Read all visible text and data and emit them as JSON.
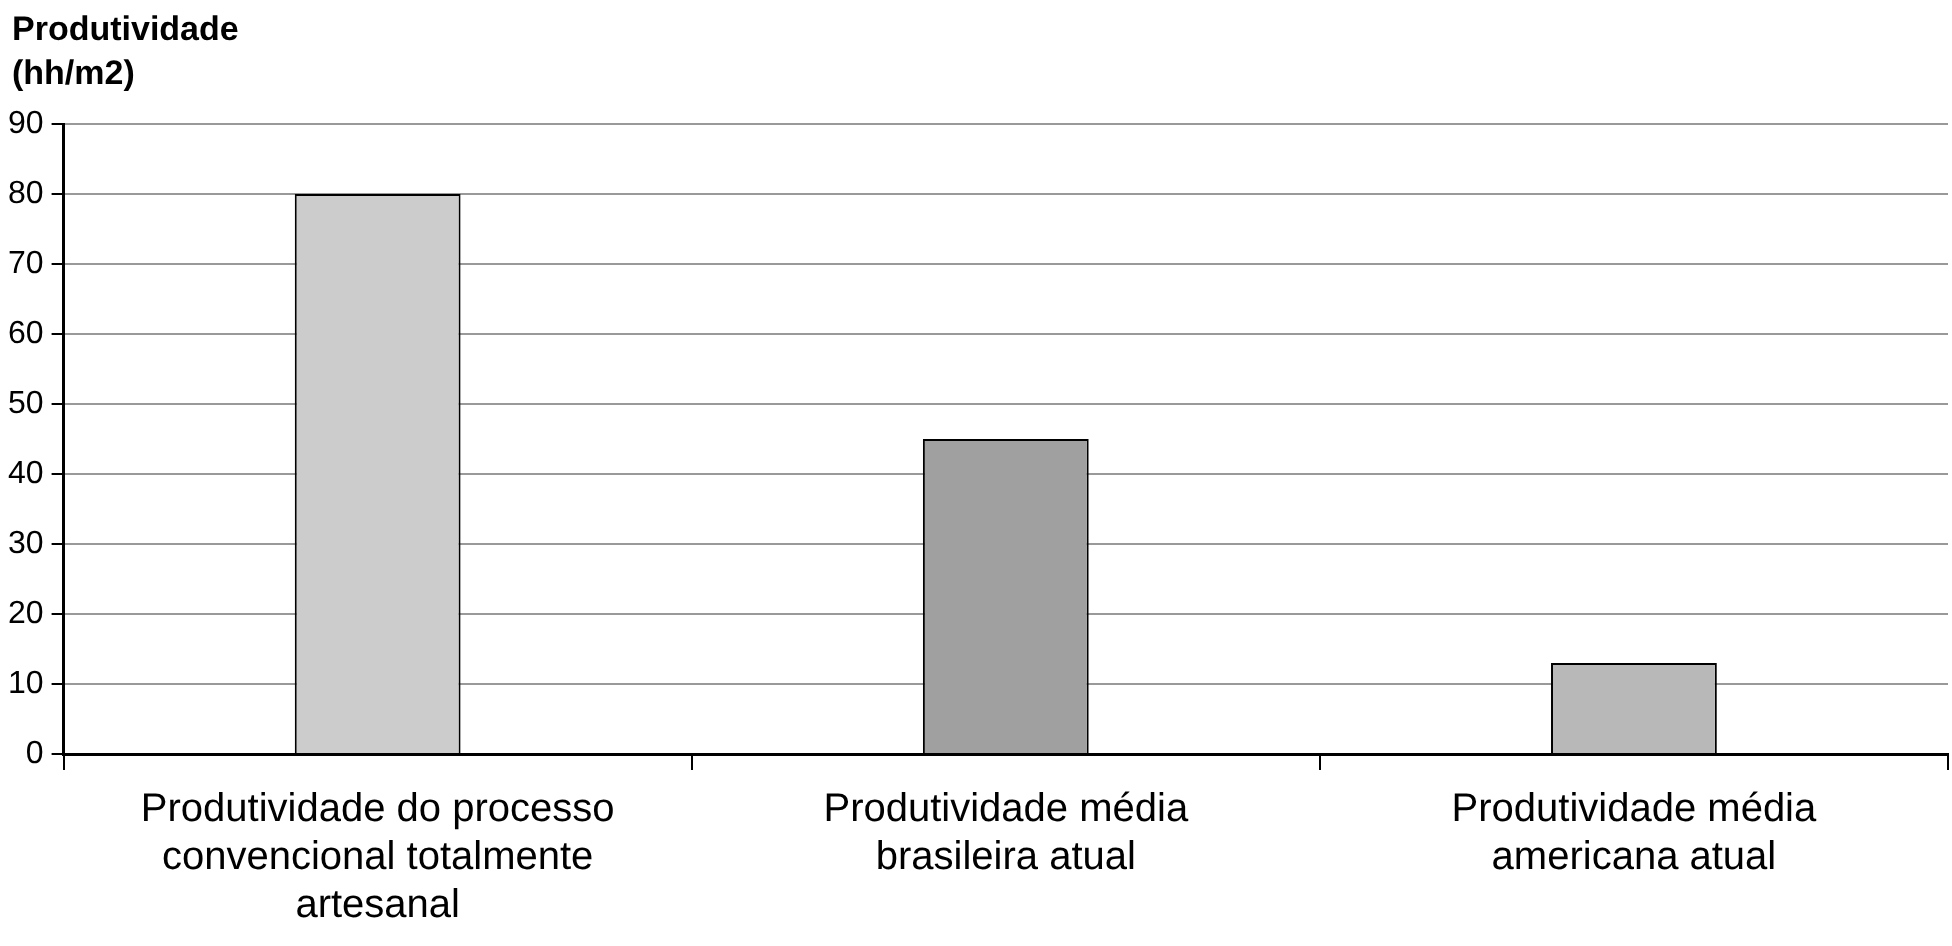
{
  "chart_data": {
    "type": "bar",
    "ylabel": "Produtividade (hh/m2)",
    "categories": [
      "Produtividade do processo convencional totalmente artesanal",
      "Produtividade média brasileira atual",
      "Produtividade média americana atual"
    ],
    "values": [
      80,
      45,
      13
    ],
    "colors": [
      "#cccccc",
      "#a0a0a0",
      "#b8b8b8"
    ],
    "ylim": [
      0,
      90
    ],
    "yticks": [
      0,
      10,
      20,
      30,
      40,
      50,
      60,
      70,
      80,
      90
    ],
    "grid": "y",
    "legend": false
  }
}
